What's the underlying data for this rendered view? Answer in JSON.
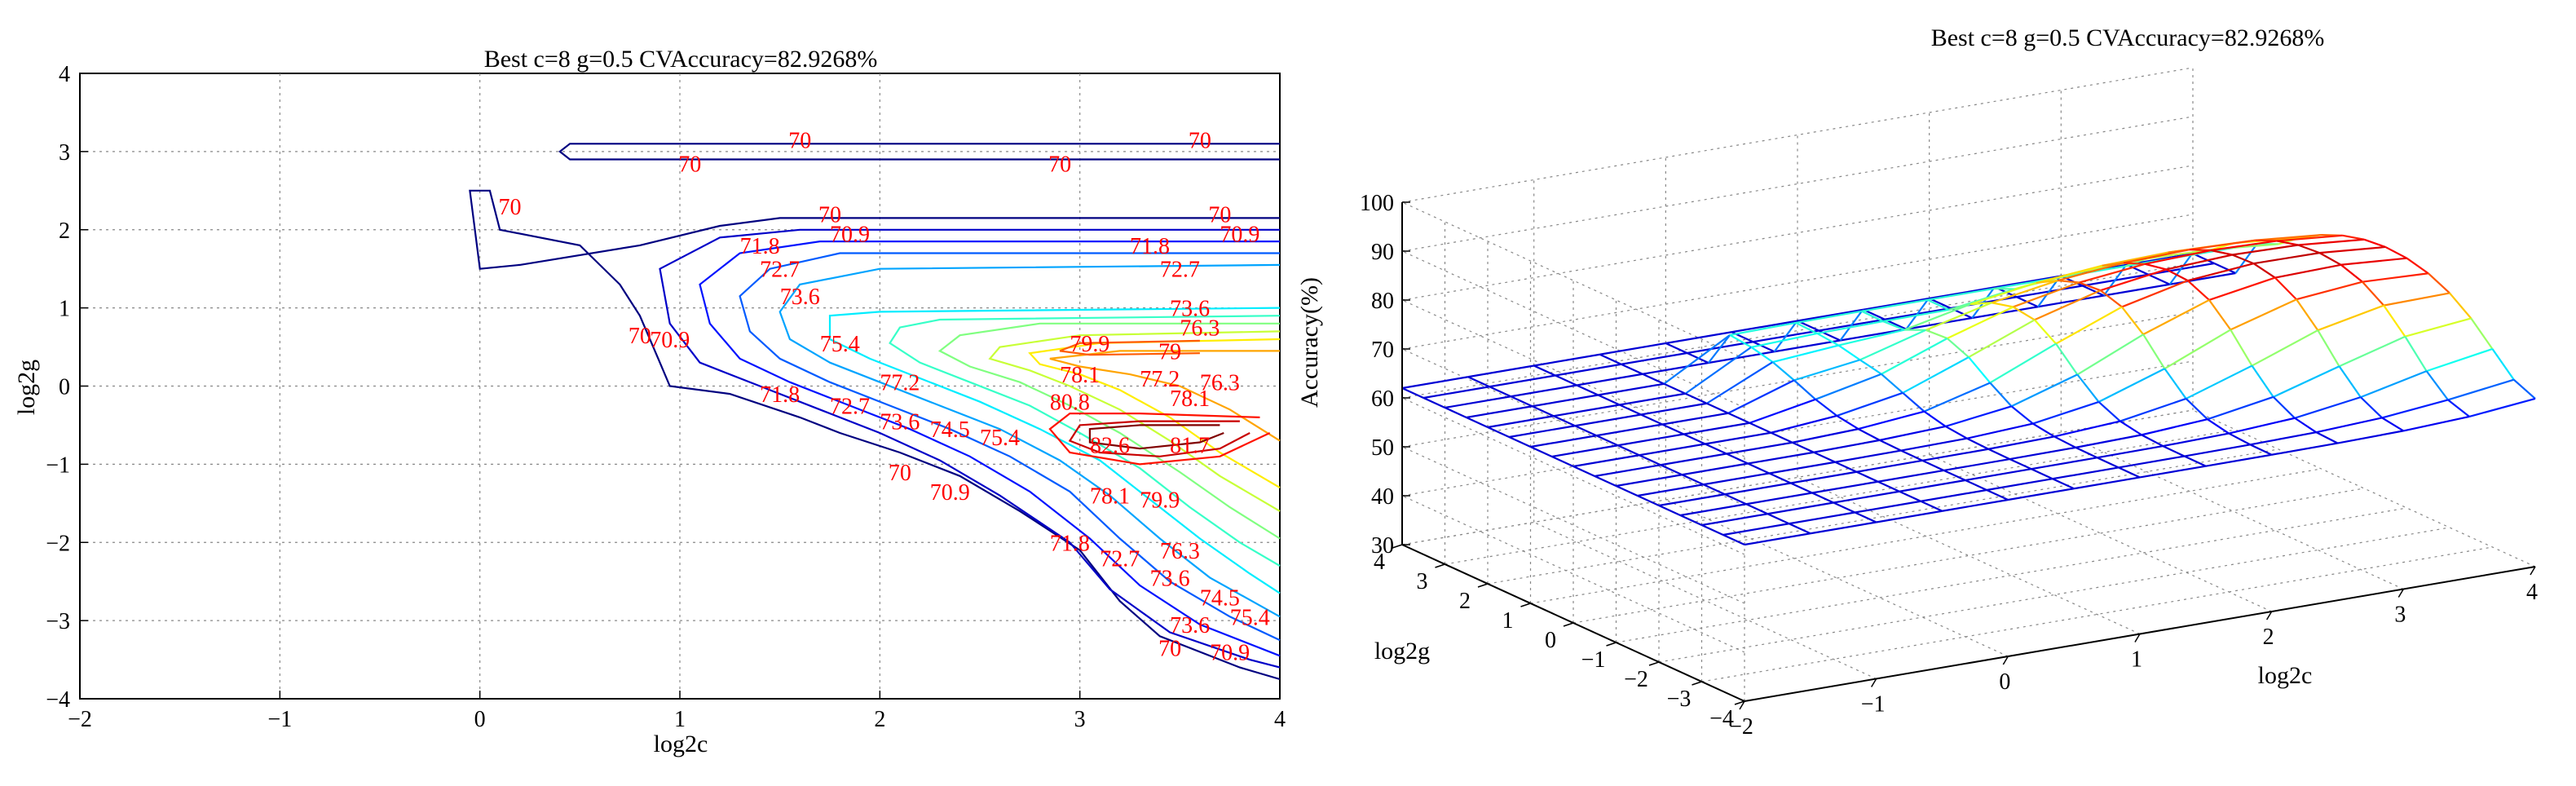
{
  "chart_data": [
    {
      "type": "contour",
      "title": "Best c=8 g=0.5 CVAccuracy=82.9268%",
      "xlabel": "log2c",
      "ylabel": "log2g",
      "xlim": [
        -2,
        4
      ],
      "ylim": [
        -4,
        4
      ],
      "xticks": [
        -2,
        -1,
        0,
        1,
        2,
        3,
        4
      ],
      "yticks": [
        4,
        3,
        2,
        1,
        0,
        -1,
        -2,
        -3,
        -4
      ],
      "grid": true,
      "contour_levels": [
        70,
        70.9,
        71.8,
        72.7,
        73.6,
        74.5,
        75.4,
        76.3,
        77.2,
        78.1,
        79,
        79.9,
        80.8,
        81.7,
        82.6
      ],
      "labels": [
        {
          "text": "70",
          "x": 1.6,
          "y": 3.15
        },
        {
          "text": "70",
          "x": 3.6,
          "y": 3.15
        },
        {
          "text": "70",
          "x": 1.05,
          "y": 2.85
        },
        {
          "text": "70",
          "x": 2.9,
          "y": 2.85
        },
        {
          "text": "70",
          "x": 0.15,
          "y": 2.3
        },
        {
          "text": "70",
          "x": 1.75,
          "y": 2.2
        },
        {
          "text": "70",
          "x": 3.7,
          "y": 2.2
        },
        {
          "text": "70.9",
          "x": 1.85,
          "y": 1.95
        },
        {
          "text": "70.9",
          "x": 3.8,
          "y": 1.95
        },
        {
          "text": "71.8",
          "x": 1.4,
          "y": 1.8
        },
        {
          "text": "71.8",
          "x": 3.35,
          "y": 1.8
        },
        {
          "text": "72.7",
          "x": 1.5,
          "y": 1.5
        },
        {
          "text": "72.7",
          "x": 3.5,
          "y": 1.5
        },
        {
          "text": "73.6",
          "x": 1.6,
          "y": 1.15
        },
        {
          "text": "73.6",
          "x": 3.55,
          "y": 1.0
        },
        {
          "text": "76.3",
          "x": 3.6,
          "y": 0.75
        },
        {
          "text": "75.4",
          "x": 1.8,
          "y": 0.55
        },
        {
          "text": "79.9",
          "x": 3.05,
          "y": 0.55
        },
        {
          "text": "79",
          "x": 3.45,
          "y": 0.45
        },
        {
          "text": "70",
          "x": 0.8,
          "y": 0.65
        },
        {
          "text": "70.9",
          "x": 0.95,
          "y": 0.6
        },
        {
          "text": "78.1",
          "x": 3.0,
          "y": 0.15
        },
        {
          "text": "77.2",
          "x": 3.4,
          "y": 0.1
        },
        {
          "text": "76.3",
          "x": 3.7,
          "y": 0.05
        },
        {
          "text": "77.2",
          "x": 2.1,
          "y": 0.05
        },
        {
          "text": "71.8",
          "x": 1.5,
          "y": -0.1
        },
        {
          "text": "72.7",
          "x": 1.85,
          "y": -0.25
        },
        {
          "text": "73.6",
          "x": 2.1,
          "y": -0.45
        },
        {
          "text": "74.5",
          "x": 2.35,
          "y": -0.55
        },
        {
          "text": "75.4",
          "x": 2.6,
          "y": -0.65
        },
        {
          "text": "80.8",
          "x": 2.95,
          "y": -0.2
        },
        {
          "text": "78.1",
          "x": 3.55,
          "y": -0.15
        },
        {
          "text": "82.6",
          "x": 3.15,
          "y": -0.75
        },
        {
          "text": "81.7",
          "x": 3.55,
          "y": -0.75
        },
        {
          "text": "70",
          "x": 2.1,
          "y": -1.1
        },
        {
          "text": "70.9",
          "x": 2.35,
          "y": -1.35
        },
        {
          "text": "78.1",
          "x": 3.15,
          "y": -1.4
        },
        {
          "text": "79.9",
          "x": 3.4,
          "y": -1.45
        },
        {
          "text": "76.3",
          "x": 3.5,
          "y": -2.1
        },
        {
          "text": "71.8",
          "x": 2.95,
          "y": -2.0
        },
        {
          "text": "72.7",
          "x": 3.2,
          "y": -2.2
        },
        {
          "text": "73.6",
          "x": 3.45,
          "y": -2.45
        },
        {
          "text": "74.5",
          "x": 3.7,
          "y": -2.7
        },
        {
          "text": "75.4",
          "x": 3.85,
          "y": -2.95
        },
        {
          "text": "73.6",
          "x": 3.55,
          "y": -3.05
        },
        {
          "text": "70.9",
          "x": 3.75,
          "y": -3.4
        },
        {
          "text": "70",
          "x": 3.45,
          "y": -3.35
        }
      ]
    },
    {
      "type": "surface",
      "title": "Best c=8 g=0.5 CVAccuracy=82.9268%",
      "xlabel": "log2c",
      "ylabel": "log2g",
      "zlabel": "Accuracy(%)",
      "xlim": [
        -2,
        4
      ],
      "ylim": [
        -4,
        4
      ],
      "zlim": [
        30,
        100
      ],
      "xticks": [
        -2,
        -1,
        0,
        1,
        2,
        3,
        4
      ],
      "yticks": [
        4,
        3,
        2,
        1,
        0,
        -1,
        -2,
        -3,
        -4
      ],
      "zticks": [
        30,
        40,
        50,
        60,
        70,
        80,
        90,
        100
      ],
      "grid": true,
      "best_point": {
        "log2c": 3,
        "log2g": -1,
        "accuracy": 82.9268
      }
    }
  ]
}
